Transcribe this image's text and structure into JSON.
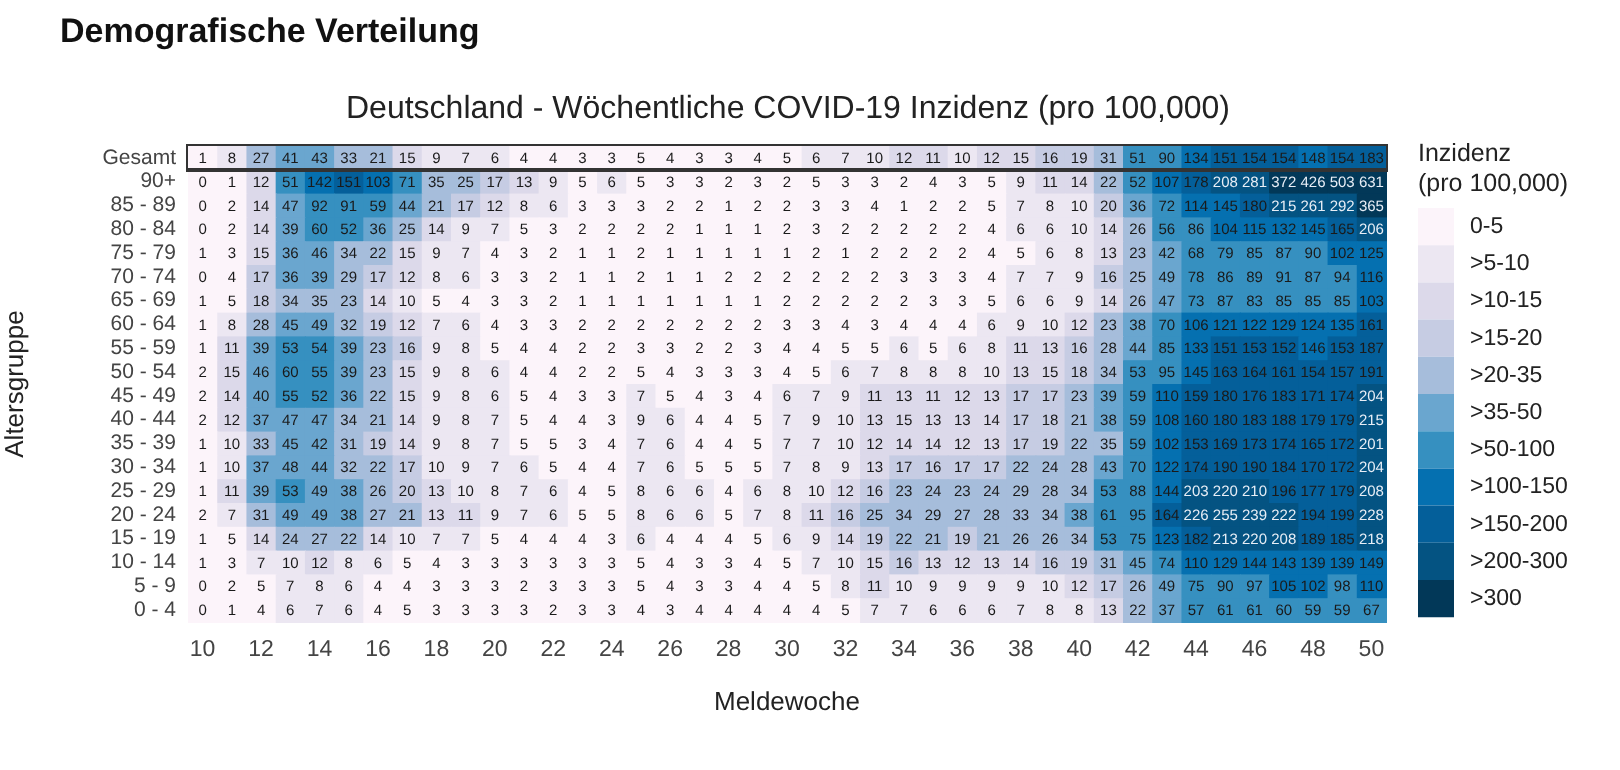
{
  "chart_data": {
    "type": "heatmap",
    "title": "Demografische Verteilung",
    "subtitle": "Deutschland - Wöchentliche COVID-19 Inzidenz (pro 100,000)",
    "xlabel": "Meldewoche",
    "ylabel": "Altersgruppe",
    "legend_title": "Inzidenz\n(pro 100,000)",
    "legend": "right",
    "data_labels": true,
    "categories": [
      "10",
      null,
      "12",
      null,
      "14",
      null,
      "16",
      null,
      "18",
      null,
      "20",
      null,
      "22",
      null,
      "24",
      null,
      "26",
      null,
      "28",
      null,
      "30",
      null,
      "32",
      null,
      "34",
      null,
      "36",
      null,
      "38",
      null,
      "40",
      null,
      "42",
      null,
      "44",
      null,
      "46",
      null,
      "48",
      null,
      "50"
    ],
    "y_categories": [
      "Gesamt",
      "90+",
      "85 - 89",
      "80 - 84",
      "75 - 79",
      "70 - 74",
      "65 - 69",
      "60 - 64",
      "55 - 59",
      "50 - 54",
      "45 - 49",
      "40 - 44",
      "35 - 39",
      "30 - 34",
      "25 - 29",
      "20 - 24",
      "15 - 19",
      "10 - 14",
      "5 - 9",
      "0 - 4"
    ],
    "series": [
      {
        "name": "0-5",
        "color": "#fcf4fa",
        "values": [
          null,
          null,
          null,
          null,
          null,
          null,
          null,
          null,
          null,
          null,
          null,
          null,
          null,
          null,
          null,
          null,
          null,
          null,
          null,
          null,
          null,
          null,
          null,
          null,
          null,
          null,
          null,
          null,
          null,
          null,
          null,
          null,
          null,
          null,
          null,
          null,
          null,
          null,
          null,
          null,
          null
        ]
      },
      {
        "name": ">5-10",
        "color": "#ece7f2",
        "values": [
          null,
          null,
          null,
          null,
          null,
          null,
          null,
          null,
          null,
          null,
          null,
          null,
          null,
          null,
          null,
          null,
          null,
          null,
          null,
          null,
          null,
          null,
          null,
          null,
          null,
          null,
          null,
          null,
          null,
          null,
          null,
          null,
          null,
          null,
          null,
          null,
          null,
          null,
          null,
          null,
          null
        ]
      },
      {
        "name": ">10-15",
        "color": "#dcd9ea",
        "values": [
          null,
          null,
          null,
          null,
          null,
          null,
          null,
          null,
          null,
          null,
          null,
          null,
          null,
          null,
          null,
          null,
          null,
          null,
          null,
          null,
          null,
          null,
          null,
          null,
          null,
          null,
          null,
          null,
          null,
          null,
          null,
          null,
          null,
          null,
          null,
          null,
          null,
          null,
          null,
          null,
          null
        ]
      },
      {
        "name": ">15-20",
        "color": "#c6cce3",
        "values": [
          null,
          null,
          null,
          null,
          null,
          null,
          null,
          null,
          null,
          null,
          null,
          null,
          null,
          null,
          null,
          null,
          null,
          null,
          null,
          null,
          null,
          null,
          null,
          null,
          null,
          null,
          null,
          null,
          null,
          null,
          null,
          null,
          null,
          null,
          null,
          null,
          null,
          null,
          null,
          null,
          null
        ]
      },
      {
        "name": ">20-35",
        "color": "#a6bddb",
        "values": [
          null,
          null,
          null,
          null,
          null,
          null,
          null,
          null,
          null,
          null,
          null,
          null,
          null,
          null,
          null,
          null,
          null,
          null,
          null,
          null,
          null,
          null,
          null,
          null,
          null,
          null,
          null,
          null,
          null,
          null,
          null,
          null,
          null,
          null,
          null,
          null,
          null,
          null,
          null,
          null,
          null
        ]
      },
      {
        "name": ">35-50",
        "color": "#6aa6cf",
        "values": [
          null,
          null,
          null,
          null,
          null,
          null,
          null,
          null,
          null,
          null,
          null,
          null,
          null,
          null,
          null,
          null,
          null,
          null,
          null,
          null,
          null,
          null,
          null,
          null,
          null,
          null,
          null,
          null,
          null,
          null,
          null,
          null,
          null,
          null,
          null,
          null,
          null,
          null,
          null,
          null,
          null
        ]
      },
      {
        "name": ">50-100",
        "color": "#3690c0",
        "values": [
          null,
          null,
          null,
          null,
          null,
          null,
          null,
          null,
          null,
          null,
          null,
          null,
          null,
          null,
          null,
          null,
          null,
          null,
          null,
          null,
          null,
          null,
          null,
          null,
          null,
          null,
          null,
          null,
          null,
          null,
          null,
          null,
          null,
          null,
          null,
          null,
          null,
          null,
          null,
          null,
          null
        ]
      },
      {
        "name": ">100-150",
        "color": "#0570b0",
        "values": [
          null,
          null,
          null,
          null,
          null,
          null,
          null,
          null,
          null,
          null,
          null,
          null,
          null,
          null,
          null,
          null,
          null,
          null,
          null,
          null,
          null,
          null,
          null,
          null,
          null,
          null,
          null,
          null,
          null,
          null,
          null,
          null,
          null,
          null,
          null,
          null,
          null,
          null,
          null,
          null,
          null
        ]
      },
      {
        "name": ">150-200",
        "color": "#045f9a",
        "values": [
          null,
          null,
          null,
          null,
          null,
          null,
          null,
          null,
          null,
          null,
          null,
          null,
          null,
          null,
          null,
          null,
          null,
          null,
          null,
          null,
          null,
          null,
          null,
          null,
          null,
          null,
          null,
          null,
          null,
          null,
          null,
          null,
          null,
          null,
          null,
          null,
          null,
          null,
          null,
          null,
          null
        ]
      },
      {
        "name": ">200-300",
        "color": "#045382",
        "values": [
          null,
          null,
          null,
          null,
          null,
          null,
          null,
          null,
          null,
          null,
          null,
          null,
          null,
          null,
          null,
          null,
          null,
          null,
          null,
          null,
          null,
          null,
          null,
          null,
          null,
          null,
          null,
          null,
          null,
          null,
          null,
          null,
          null,
          null,
          null,
          null,
          null,
          null,
          null,
          null,
          null
        ]
      },
      {
        "name": ">300",
        "color": "#023858",
        "values": [
          null,
          null,
          null,
          null,
          null,
          null,
          null,
          null,
          null,
          null,
          null,
          null,
          null,
          null,
          null,
          null,
          null,
          null,
          null,
          null,
          null,
          null,
          null,
          null,
          null,
          null,
          null,
          null,
          null,
          null,
          null,
          null,
          null,
          null,
          null,
          null,
          null,
          null,
          null,
          null,
          null
        ]
      }
    ],
    "cells": [
      [
        1,
        8,
        27,
        41,
        43,
        33,
        21,
        15,
        9,
        7,
        6,
        4,
        4,
        3,
        3,
        5,
        4,
        3,
        3,
        4,
        5,
        6,
        7,
        10,
        12,
        11,
        10,
        12,
        15,
        16,
        19,
        31,
        51,
        90,
        134,
        151,
        154,
        154,
        148,
        154,
        183
      ],
      [
        0,
        1,
        12,
        51,
        142,
        151,
        103,
        71,
        35,
        25,
        17,
        13,
        9,
        5,
        6,
        5,
        3,
        3,
        2,
        3,
        2,
        5,
        3,
        3,
        2,
        4,
        3,
        5,
        9,
        11,
        14,
        22,
        52,
        107,
        178,
        208,
        281,
        372,
        426,
        503,
        631
      ],
      [
        0,
        2,
        14,
        47,
        92,
        91,
        59,
        44,
        21,
        17,
        12,
        8,
        6,
        3,
        3,
        3,
        2,
        2,
        1,
        2,
        2,
        3,
        3,
        4,
        1,
        2,
        2,
        5,
        7,
        8,
        10,
        20,
        36,
        72,
        114,
        145,
        180,
        215,
        261,
        292,
        365
      ],
      [
        0,
        2,
        14,
        39,
        60,
        52,
        36,
        25,
        14,
        9,
        7,
        5,
        3,
        2,
        2,
        2,
        2,
        1,
        1,
        1,
        2,
        3,
        2,
        2,
        2,
        2,
        2,
        4,
        6,
        6,
        10,
        14,
        26,
        56,
        86,
        104,
        115,
        132,
        145,
        165,
        206
      ],
      [
        1,
        3,
        15,
        36,
        46,
        34,
        22,
        15,
        9,
        7,
        4,
        3,
        2,
        1,
        1,
        2,
        1,
        1,
        1,
        1,
        1,
        2,
        1,
        2,
        2,
        2,
        2,
        4,
        5,
        6,
        8,
        13,
        23,
        42,
        68,
        79,
        85,
        87,
        90,
        102,
        125
      ],
      [
        0,
        4,
        17,
        36,
        39,
        29,
        17,
        12,
        8,
        6,
        3,
        3,
        2,
        1,
        1,
        2,
        1,
        1,
        2,
        2,
        2,
        2,
        2,
        2,
        3,
        3,
        3,
        4,
        7,
        7,
        9,
        16,
        25,
        49,
        78,
        86,
        89,
        91,
        87,
        94,
        116
      ],
      [
        1,
        5,
        18,
        34,
        35,
        23,
        14,
        10,
        5,
        4,
        3,
        3,
        2,
        1,
        1,
        1,
        1,
        1,
        1,
        1,
        2,
        2,
        2,
        2,
        2,
        3,
        3,
        5,
        6,
        6,
        9,
        14,
        26,
        47,
        73,
        87,
        83,
        85,
        85,
        85,
        103
      ],
      [
        1,
        8,
        28,
        45,
        49,
        32,
        19,
        12,
        7,
        6,
        4,
        3,
        3,
        2,
        2,
        2,
        2,
        2,
        2,
        2,
        3,
        3,
        4,
        3,
        4,
        4,
        4,
        6,
        9,
        10,
        12,
        23,
        38,
        70,
        106,
        121,
        122,
        129,
        124,
        135,
        161
      ],
      [
        1,
        11,
        39,
        53,
        54,
        39,
        23,
        16,
        9,
        8,
        5,
        4,
        4,
        2,
        2,
        3,
        3,
        2,
        2,
        3,
        4,
        4,
        5,
        5,
        6,
        5,
        6,
        8,
        11,
        13,
        16,
        28,
        44,
        85,
        133,
        151,
        153,
        152,
        146,
        153,
        187
      ],
      [
        2,
        15,
        46,
        60,
        55,
        39,
        23,
        15,
        9,
        8,
        6,
        4,
        4,
        2,
        2,
        5,
        4,
        3,
        3,
        3,
        4,
        5,
        6,
        7,
        8,
        8,
        8,
        10,
        13,
        15,
        18,
        34,
        53,
        95,
        145,
        163,
        164,
        161,
        154,
        157,
        191
      ],
      [
        2,
        14,
        40,
        55,
        52,
        36,
        22,
        15,
        9,
        8,
        6,
        5,
        4,
        3,
        3,
        7,
        5,
        4,
        3,
        4,
        6,
        7,
        9,
        11,
        13,
        11,
        12,
        13,
        17,
        17,
        23,
        39,
        59,
        110,
        159,
        180,
        176,
        183,
        171,
        174,
        204
      ],
      [
        2,
        12,
        37,
        47,
        47,
        34,
        21,
        14,
        9,
        8,
        7,
        5,
        4,
        4,
        3,
        9,
        6,
        4,
        4,
        5,
        7,
        9,
        10,
        13,
        15,
        13,
        13,
        14,
        17,
        18,
        21,
        38,
        59,
        108,
        160,
        180,
        183,
        188,
        179,
        179,
        215
      ],
      [
        1,
        10,
        33,
        45,
        42,
        31,
        19,
        14,
        9,
        8,
        7,
        5,
        5,
        3,
        4,
        7,
        6,
        4,
        4,
        5,
        7,
        7,
        10,
        12,
        14,
        14,
        12,
        13,
        17,
        19,
        22,
        35,
        59,
        102,
        153,
        169,
        173,
        174,
        165,
        172,
        201
      ],
      [
        1,
        10,
        37,
        48,
        44,
        32,
        22,
        17,
        10,
        9,
        7,
        6,
        5,
        4,
        4,
        7,
        6,
        5,
        5,
        5,
        7,
        8,
        9,
        13,
        17,
        16,
        17,
        17,
        22,
        24,
        28,
        43,
        70,
        122,
        174,
        190,
        190,
        184,
        170,
        172,
        204
      ],
      [
        1,
        11,
        39,
        53,
        49,
        38,
        26,
        20,
        13,
        10,
        8,
        7,
        6,
        4,
        5,
        8,
        6,
        6,
        4,
        6,
        8,
        10,
        12,
        16,
        23,
        24,
        23,
        24,
        29,
        28,
        34,
        53,
        88,
        144,
        203,
        220,
        210,
        196,
        177,
        179,
        208
      ],
      [
        2,
        7,
        31,
        49,
        49,
        38,
        27,
        21,
        13,
        11,
        9,
        7,
        6,
        5,
        5,
        8,
        6,
        6,
        5,
        7,
        8,
        11,
        16,
        25,
        34,
        29,
        27,
        28,
        33,
        34,
        38,
        61,
        95,
        164,
        226,
        255,
        239,
        222,
        194,
        199,
        228
      ],
      [
        1,
        5,
        14,
        24,
        27,
        22,
        14,
        10,
        7,
        7,
        5,
        4,
        4,
        4,
        3,
        6,
        4,
        4,
        4,
        5,
        6,
        9,
        14,
        19,
        22,
        21,
        19,
        21,
        26,
        26,
        34,
        53,
        75,
        123,
        182,
        213,
        220,
        208,
        189,
        185,
        218
      ],
      [
        1,
        3,
        7,
        10,
        12,
        8,
        6,
        5,
        4,
        3,
        3,
        3,
        3,
        3,
        3,
        5,
        4,
        3,
        3,
        4,
        5,
        7,
        10,
        15,
        16,
        13,
        12,
        13,
        14,
        16,
        19,
        31,
        45,
        74,
        110,
        129,
        144,
        143,
        139,
        139,
        149
      ],
      [
        0,
        2,
        5,
        7,
        8,
        6,
        4,
        4,
        3,
        3,
        3,
        2,
        3,
        3,
        3,
        5,
        4,
        3,
        3,
        4,
        4,
        5,
        8,
        11,
        10,
        9,
        9,
        9,
        9,
        10,
        12,
        17,
        26,
        49,
        75,
        90,
        97,
        105,
        102,
        98,
        110
      ],
      [
        0,
        1,
        4,
        6,
        7,
        6,
        4,
        5,
        3,
        3,
        3,
        3,
        2,
        3,
        3,
        4,
        3,
        4,
        4,
        4,
        4,
        4,
        5,
        7,
        7,
        6,
        6,
        6,
        7,
        8,
        8,
        13,
        22,
        37,
        57,
        61,
        61,
        60,
        59,
        59,
        67
      ]
    ]
  }
}
